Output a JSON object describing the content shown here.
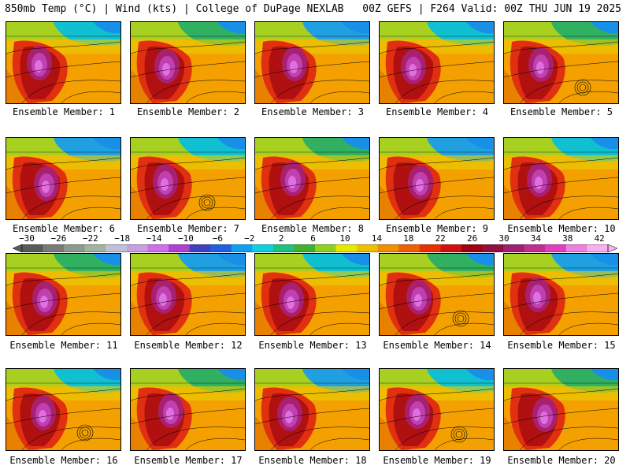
{
  "header": {
    "left_title": "850mb Temp (°C) | Wind (kts) | College of DuPage NEXLAB",
    "right_title": "00Z GEFS | F264 Valid: 00Z THU JUN 19 2025"
  },
  "panels": [
    {
      "label": "Ensemble Member: 1"
    },
    {
      "label": "Ensemble Member: 2"
    },
    {
      "label": "Ensemble Member: 3"
    },
    {
      "label": "Ensemble Member: 4"
    },
    {
      "label": "Ensemble Member: 5"
    },
    {
      "label": "Ensemble Member: 6"
    },
    {
      "label": "Ensemble Member: 7"
    },
    {
      "label": "Ensemble Member: 8"
    },
    {
      "label": "Ensemble Member: 9"
    },
    {
      "label": "Ensemble Member: 10"
    },
    {
      "label": "Ensemble Member: 11"
    },
    {
      "label": "Ensemble Member: 12"
    },
    {
      "label": "Ensemble Member: 13"
    },
    {
      "label": "Ensemble Member: 14"
    },
    {
      "label": "Ensemble Member: 15"
    },
    {
      "label": "Ensemble Member: 16"
    },
    {
      "label": "Ensemble Member: 17"
    },
    {
      "label": "Ensemble Member: 18"
    },
    {
      "label": "Ensemble Member: 19"
    },
    {
      "label": "Ensemble Member: 20"
    }
  ],
  "colorbar": {
    "ticks": [
      "−30",
      "−26",
      "−22",
      "−18",
      "−14",
      "−10",
      "−6",
      "−2",
      "2",
      "6",
      "10",
      "14",
      "18",
      "22",
      "26",
      "30",
      "34",
      "38",
      "42"
    ],
    "colors": [
      "#5a5a5a",
      "#7a7a7a",
      "#8e9a8e",
      "#a0b4a0",
      "#c0c0d8",
      "#c8a0e0",
      "#d070e8",
      "#b040d0",
      "#4040c0",
      "#2060e0",
      "#10a0f0",
      "#10d0e0",
      "#20c080",
      "#40b030",
      "#90d020",
      "#e8e800",
      "#f0c000",
      "#f09000",
      "#f06000",
      "#e83000",
      "#d01010",
      "#a00010",
      "#901040",
      "#a02070",
      "#c03090",
      "#e040c0",
      "#f080e0",
      "#f8b0f0"
    ]
  }
}
